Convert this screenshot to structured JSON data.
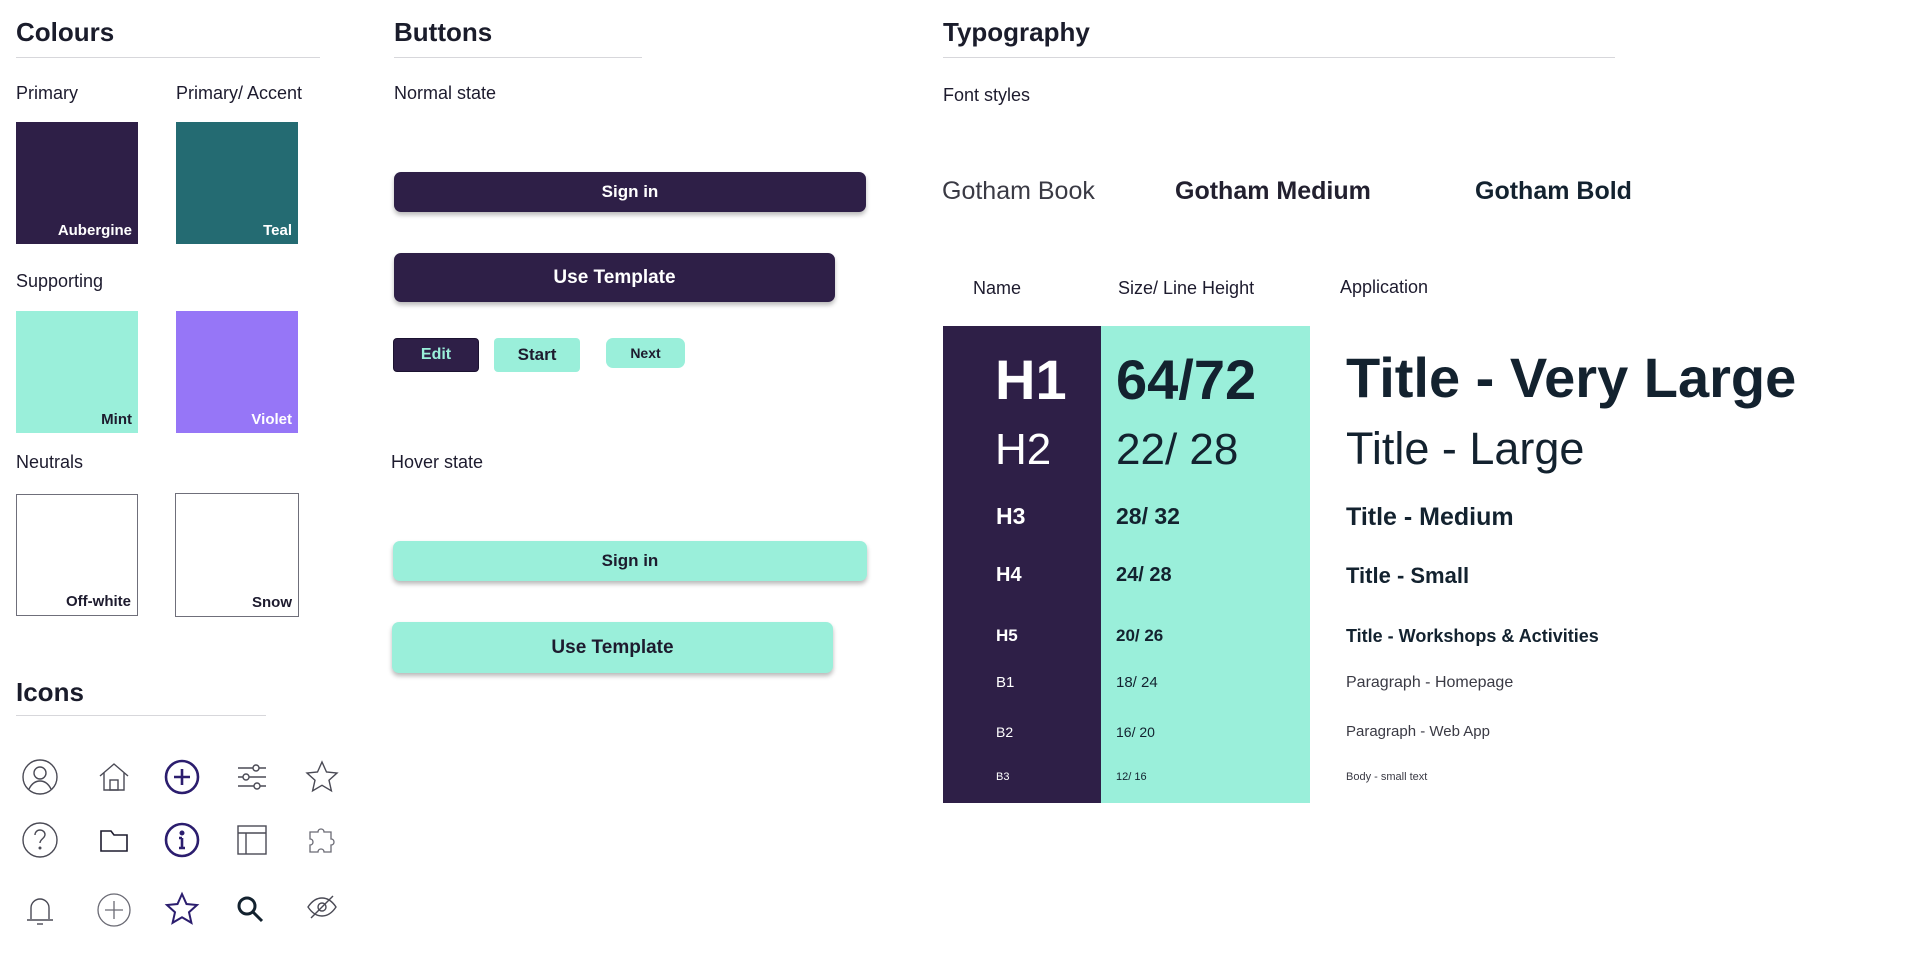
{
  "colours": {
    "title": "Colours",
    "primary_label": "Primary",
    "accent_label": "Primary/ Accent",
    "supporting_label": "Supporting",
    "neutrals_label": "Neutrals",
    "swatches": {
      "aubergine": {
        "name": "Aubergine",
        "hex": "#2e1f47"
      },
      "teal": {
        "name": "Teal",
        "hex": "#246b72"
      },
      "mint": {
        "name": "Mint",
        "hex": "#9aefda"
      },
      "violet": {
        "name": "Violet",
        "hex": "#9676f7"
      },
      "offwhite": {
        "name": "Off-white",
        "hex": "#ffffff"
      },
      "snow": {
        "name": "Snow",
        "hex": "#ffffff"
      }
    }
  },
  "icons": {
    "title": "Icons",
    "row1": [
      "user-circle-icon",
      "home-icon",
      "add-circle-icon",
      "sliders-icon",
      "star-outline-icon"
    ],
    "row2": [
      "help-circle-icon",
      "folder-icon",
      "info-circle-icon",
      "layout-icon",
      "puzzle-icon"
    ],
    "row3": [
      "bell-icon",
      "add-circle-outline-icon",
      "star-icon",
      "search-icon",
      "eye-off-icon"
    ]
  },
  "buttons": {
    "title": "Buttons",
    "normal_label": "Normal state",
    "hover_label": "Hover state",
    "sign_in": "Sign in",
    "use_template": "Use Template",
    "edit": "Edit",
    "start": "Start",
    "next": "Next"
  },
  "typography": {
    "title": "Typography",
    "font_styles_label": "Font styles",
    "font_book": "Gotham Book",
    "font_medium": "Gotham Medium",
    "font_bold": "Gotham Bold",
    "col_name": "Name",
    "col_size": "Size/ Line Height",
    "col_application": "Application",
    "rows": [
      {
        "name": "H1",
        "size": "64/72",
        "application": "Title - Very Large"
      },
      {
        "name": "H2",
        "size": "22/ 28",
        "application": "Title - Large"
      },
      {
        "name": "H3",
        "size": "28/ 32",
        "application": "Title - Medium"
      },
      {
        "name": "H4",
        "size": "24/ 28",
        "application": "Title - Small"
      },
      {
        "name": "H5",
        "size": "20/ 26",
        "application": "Title - Workshops & Activities"
      },
      {
        "name": "B1",
        "size": "18/ 24",
        "application": "Paragraph - Homepage"
      },
      {
        "name": "B2",
        "size": "16/ 20",
        "application": "Paragraph - Web App"
      },
      {
        "name": "B3",
        "size": "12/ 16",
        "application": "Body - small text"
      }
    ]
  },
  "theme": {
    "aubergine": "#2e1f47",
    "mint": "#9aefda",
    "dark_text": "#13222f"
  }
}
